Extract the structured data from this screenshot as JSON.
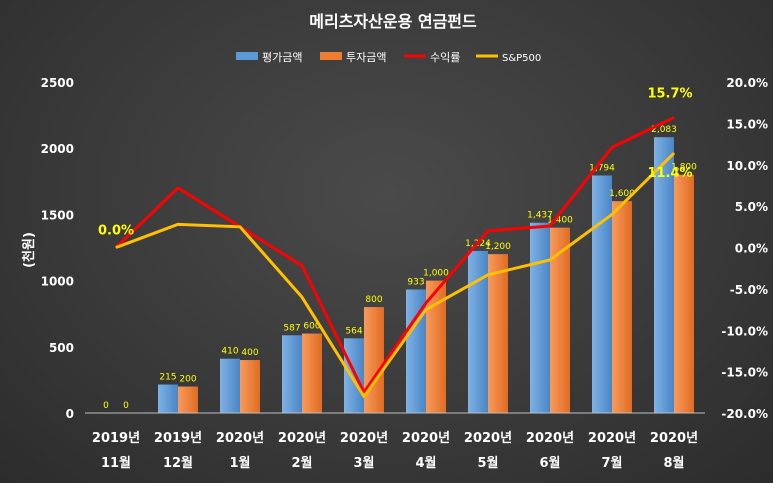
{
  "chart_data": {
    "type": "bar+line",
    "title": "메리츠자산운용 연금펀드",
    "ylabel": "(천원)",
    "ylim": [
      0,
      2500
    ],
    "y_ticks": [
      "0",
      "500",
      "1000",
      "1500",
      "2000",
      "2500"
    ],
    "y2lim": [
      -20,
      20
    ],
    "y2_ticks": [
      "-20.0%",
      "-15.0%",
      "-10.0%",
      "-5.0%",
      "0.0%",
      "5.0%",
      "10.0%",
      "15.0%",
      "20.0%"
    ],
    "categories": [
      [
        "2019년",
        "11월"
      ],
      [
        "2019년",
        "12월"
      ],
      [
        "2020년",
        "1월"
      ],
      [
        "2020년",
        "2월"
      ],
      [
        "2020년",
        "3월"
      ],
      [
        "2020년",
        "4월"
      ],
      [
        "2020년",
        "5월"
      ],
      [
        "2020년",
        "6월"
      ],
      [
        "2020년",
        "7월"
      ],
      [
        "2020년",
        "8월"
      ]
    ],
    "bar_series": [
      {
        "name": "평가금액",
        "color": "#5b9bd5",
        "values": [
          0,
          215,
          410,
          587,
          564,
          933,
          1224,
          1437,
          1794,
          2083
        ],
        "labels": [
          "0",
          "215",
          "410",
          "587",
          "564",
          "933",
          "1,224",
          "1,437",
          "1,794",
          "2,083"
        ]
      },
      {
        "name": "투자금액",
        "color": "#ed7d31",
        "values": [
          0,
          200,
          400,
          600,
          800,
          1000,
          1200,
          1400,
          1600,
          1800
        ],
        "labels": [
          "0",
          "200",
          "400",
          "600",
          "800",
          "1,000",
          "1,200",
          "1,400",
          "1,600",
          "1,800"
        ]
      }
    ],
    "line_series": [
      {
        "name": "수익률",
        "color": "#ff0000",
        "values": [
          0.0,
          7.2,
          2.5,
          -2.2,
          -17.5,
          -6.7,
          2.0,
          2.6,
          12.1,
          15.7
        ]
      },
      {
        "name": "S&P500",
        "color": "#ffc000",
        "values": [
          0.0,
          2.8,
          2.5,
          -6.0,
          -18.0,
          -7.5,
          -3.3,
          -1.5,
          4.0,
          11.4
        ]
      }
    ],
    "annotations": [
      {
        "text": "0.0%",
        "series": 1,
        "index": 0,
        "color": "#ffff00"
      },
      {
        "text": "15.7%",
        "series": 0,
        "index": 9,
        "color": "#ffff00"
      },
      {
        "text": "11.4%",
        "series": 1,
        "index": 9,
        "color": "#ffff00"
      }
    ]
  }
}
